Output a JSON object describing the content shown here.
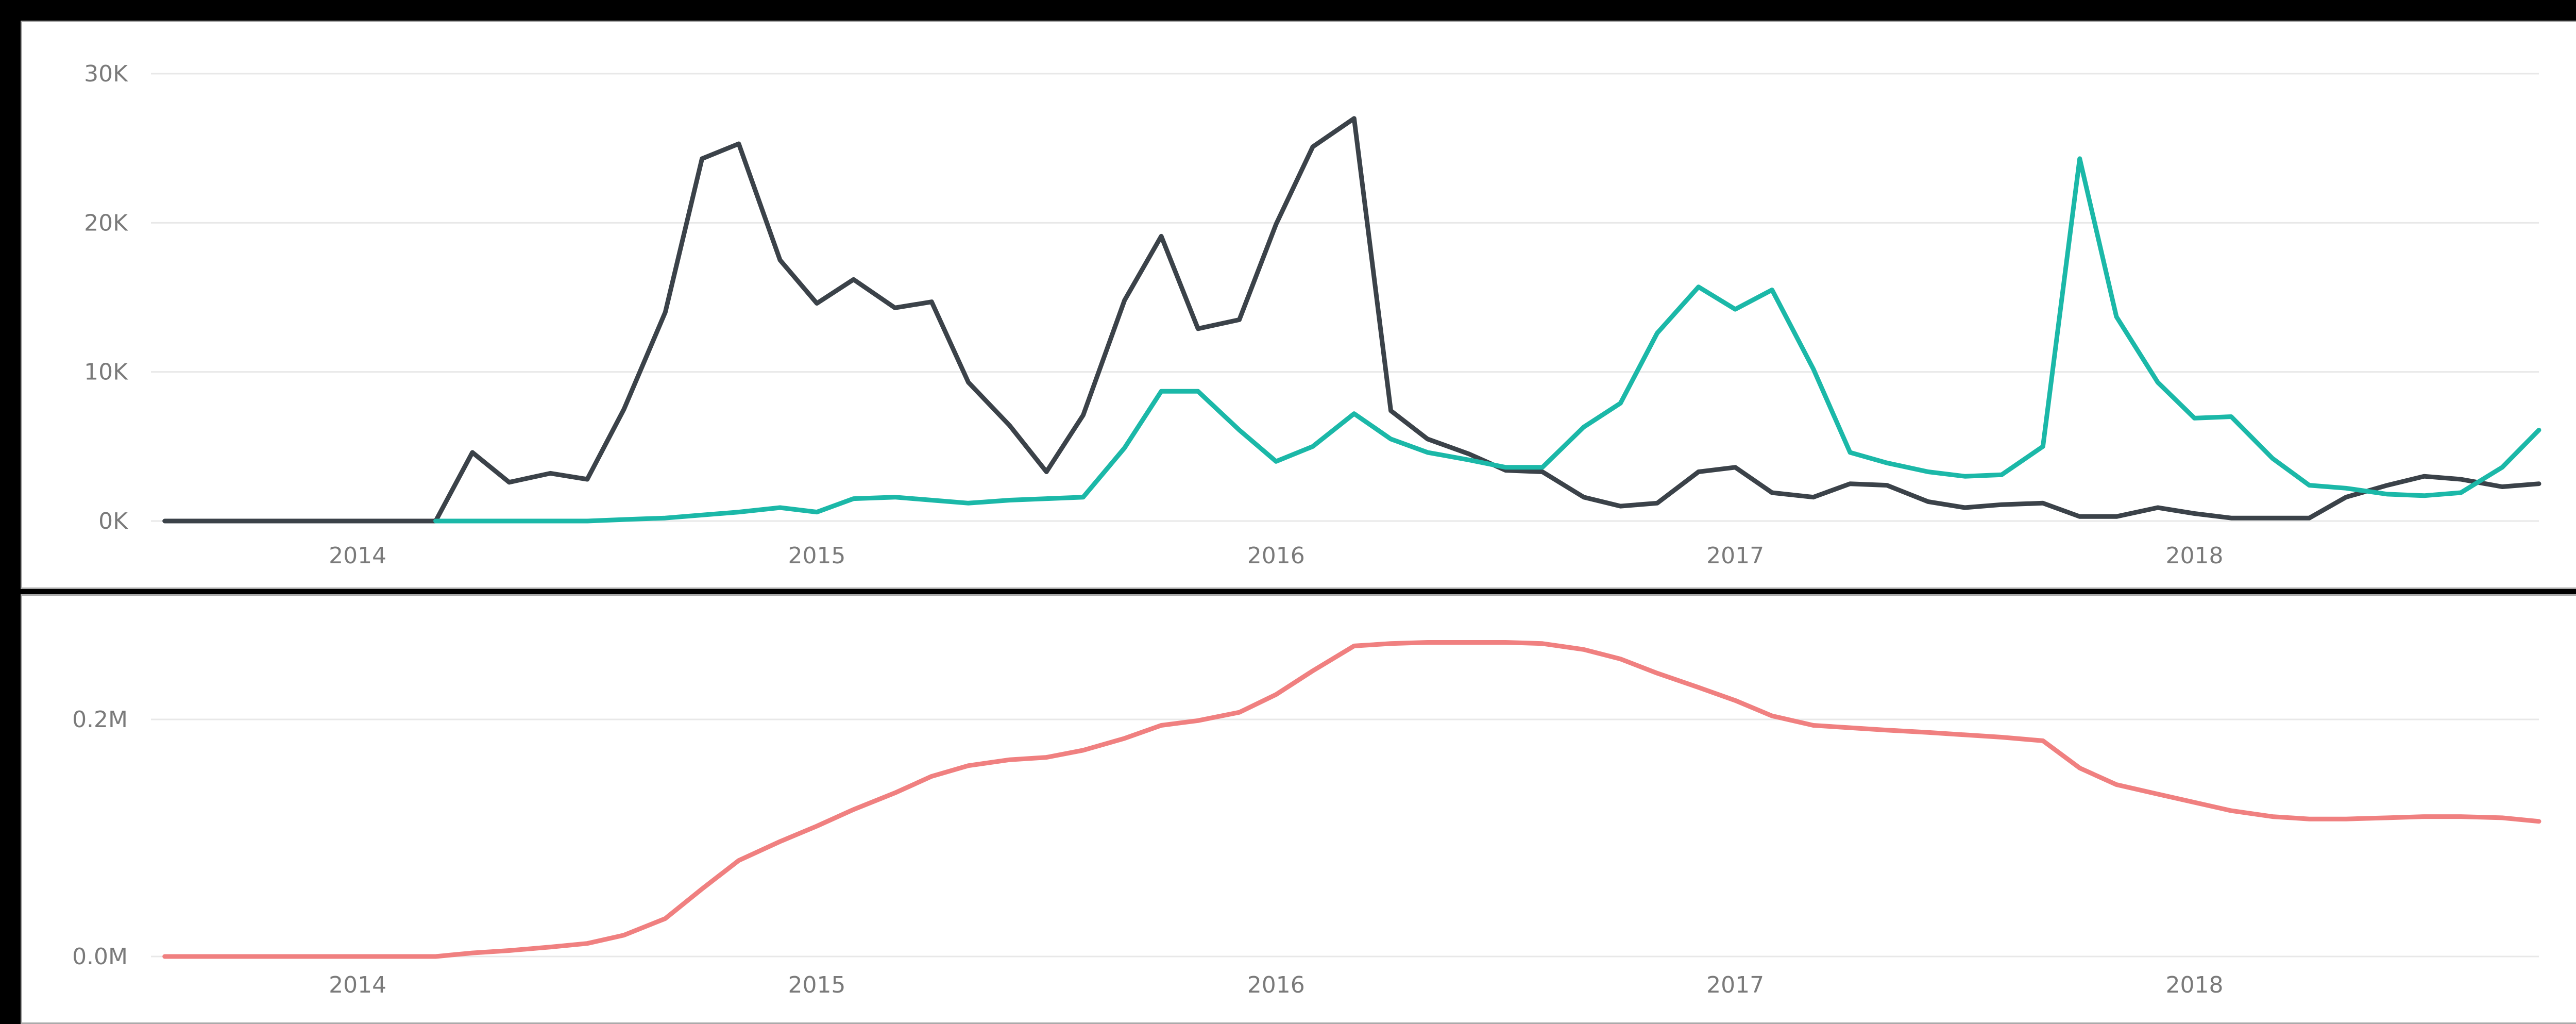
{
  "colors": {
    "black_series": "#3b4249",
    "teal_series": "#1bb8a8",
    "red_series": "#f08080",
    "grid": "#e8e8e8",
    "tick_text": "#7a7a7a"
  },
  "chart_data": [
    {
      "type": "line",
      "title": "",
      "xlabel": "",
      "ylabel": "",
      "x_tick_labels": [
        "2014",
        "2015",
        "2016",
        "2017",
        "2018"
      ],
      "y_tick_labels": [
        "0K",
        "10K",
        "20K",
        "30K"
      ],
      "y_ticks": [
        0,
        10000,
        20000,
        30000
      ],
      "ylim": [
        0,
        30000
      ],
      "xlim": [
        2013.55,
        2018.75
      ],
      "grid": true,
      "legend": "none",
      "series": [
        {
          "color": "#3b4249",
          "points": [
            [
              2013.58,
              0
            ],
            [
              2014.17,
              0
            ],
            [
              2014.25,
              4600
            ],
            [
              2014.33,
              2600
            ],
            [
              2014.42,
              3200
            ],
            [
              2014.5,
              2800
            ],
            [
              2014.58,
              7500
            ],
            [
              2014.67,
              14000
            ],
            [
              2014.75,
              24300
            ],
            [
              2014.83,
              25300
            ],
            [
              2014.92,
              17500
            ],
            [
              2015.0,
              14600
            ],
            [
              2015.08,
              16200
            ],
            [
              2015.17,
              14300
            ],
            [
              2015.25,
              14700
            ],
            [
              2015.33,
              9300
            ],
            [
              2015.42,
              6400
            ],
            [
              2015.5,
              3300
            ],
            [
              2015.58,
              7100
            ],
            [
              2015.67,
              14800
            ],
            [
              2015.75,
              19100
            ],
            [
              2015.83,
              12900
            ],
            [
              2015.92,
              13500
            ],
            [
              2016.0,
              19900
            ],
            [
              2016.08,
              25100
            ],
            [
              2016.17,
              27000
            ],
            [
              2016.25,
              7400
            ],
            [
              2016.33,
              5500
            ],
            [
              2016.42,
              4500
            ],
            [
              2016.5,
              3400
            ],
            [
              2016.58,
              3300
            ],
            [
              2016.67,
              1600
            ],
            [
              2016.75,
              1000
            ],
            [
              2016.83,
              1200
            ],
            [
              2016.92,
              3300
            ],
            [
              2017.0,
              3600
            ],
            [
              2017.08,
              1900
            ],
            [
              2017.17,
              1600
            ],
            [
              2017.25,
              2500
            ],
            [
              2017.33,
              2400
            ],
            [
              2017.42,
              1300
            ],
            [
              2017.5,
              900
            ],
            [
              2017.58,
              1100
            ],
            [
              2017.67,
              1200
            ],
            [
              2017.75,
              300
            ],
            [
              2017.83,
              300
            ],
            [
              2017.92,
              900
            ],
            [
              2018.0,
              500
            ],
            [
              2018.08,
              200
            ],
            [
              2018.17,
              200
            ],
            [
              2018.25,
              200
            ],
            [
              2018.33,
              1600
            ],
            [
              2018.42,
              2400
            ],
            [
              2018.5,
              3000
            ],
            [
              2018.58,
              2800
            ],
            [
              2018.67,
              2300
            ],
            [
              2018.75,
              2500
            ]
          ]
        },
        {
          "color": "#1bb8a8",
          "points": [
            [
              2014.17,
              0
            ],
            [
              2014.5,
              0
            ],
            [
              2014.58,
              100
            ],
            [
              2014.67,
              200
            ],
            [
              2014.75,
              400
            ],
            [
              2014.83,
              600
            ],
            [
              2014.92,
              900
            ],
            [
              2015.0,
              600
            ],
            [
              2015.08,
              1500
            ],
            [
              2015.17,
              1600
            ],
            [
              2015.25,
              1400
            ],
            [
              2015.33,
              1200
            ],
            [
              2015.42,
              1400
            ],
            [
              2015.5,
              1500
            ],
            [
              2015.58,
              1600
            ],
            [
              2015.67,
              4900
            ],
            [
              2015.75,
              8700
            ],
            [
              2015.83,
              8700
            ],
            [
              2015.92,
              6100
            ],
            [
              2016.0,
              4000
            ],
            [
              2016.08,
              5000
            ],
            [
              2016.17,
              7200
            ],
            [
              2016.25,
              5500
            ],
            [
              2016.33,
              4600
            ],
            [
              2016.42,
              4100
            ],
            [
              2016.5,
              3600
            ],
            [
              2016.58,
              3600
            ],
            [
              2016.67,
              6300
            ],
            [
              2016.75,
              7900
            ],
            [
              2016.83,
              12600
            ],
            [
              2016.92,
              15700
            ],
            [
              2017.0,
              14200
            ],
            [
              2017.08,
              15500
            ],
            [
              2017.17,
              10200
            ],
            [
              2017.25,
              4600
            ],
            [
              2017.33,
              3900
            ],
            [
              2017.42,
              3300
            ],
            [
              2017.5,
              3000
            ],
            [
              2017.58,
              3100
            ],
            [
              2017.67,
              5000
            ],
            [
              2017.75,
              24300
            ],
            [
              2017.83,
              13700
            ],
            [
              2017.92,
              9300
            ],
            [
              2018.0,
              6900
            ],
            [
              2018.08,
              7000
            ],
            [
              2018.17,
              4200
            ],
            [
              2018.25,
              2400
            ],
            [
              2018.33,
              2200
            ],
            [
              2018.42,
              1800
            ],
            [
              2018.5,
              1700
            ],
            [
              2018.58,
              1900
            ],
            [
              2018.67,
              3600
            ],
            [
              2018.75,
              6100
            ]
          ]
        }
      ]
    },
    {
      "type": "line",
      "title": "",
      "xlabel": "",
      "ylabel": "",
      "x_tick_labels": [
        "2014",
        "2015",
        "2016",
        "2017",
        "2018"
      ],
      "y_tick_labels": [
        "0.0M",
        "0.2M"
      ],
      "y_ticks": [
        0,
        200000
      ],
      "ylim": [
        0,
        300000
      ],
      "xlim": [
        2013.55,
        2018.75
      ],
      "grid": true,
      "legend": "none",
      "series": [
        {
          "color": "#f08080",
          "points": [
            [
              2013.58,
              0
            ],
            [
              2014.17,
              0
            ],
            [
              2014.25,
              3000
            ],
            [
              2014.33,
              5000
            ],
            [
              2014.42,
              8000
            ],
            [
              2014.5,
              11000
            ],
            [
              2014.58,
              18000
            ],
            [
              2014.67,
              32000
            ],
            [
              2014.75,
              57000
            ],
            [
              2014.83,
              81000
            ],
            [
              2014.92,
              97000
            ],
            [
              2015.0,
              110000
            ],
            [
              2015.08,
              124000
            ],
            [
              2015.17,
              138000
            ],
            [
              2015.25,
              152000
            ],
            [
              2015.33,
              161000
            ],
            [
              2015.42,
              166000
            ],
            [
              2015.5,
              168000
            ],
            [
              2015.58,
              174000
            ],
            [
              2015.67,
              184000
            ],
            [
              2015.75,
              195000
            ],
            [
              2015.83,
              199000
            ],
            [
              2015.92,
              206000
            ],
            [
              2016.0,
              221000
            ],
            [
              2016.08,
              241000
            ],
            [
              2016.17,
              262000
            ],
            [
              2016.25,
              264000
            ],
            [
              2016.33,
              265000
            ],
            [
              2016.42,
              265000
            ],
            [
              2016.5,
              265000
            ],
            [
              2016.58,
              264000
            ],
            [
              2016.67,
              259000
            ],
            [
              2016.75,
              251000
            ],
            [
              2016.83,
              239000
            ],
            [
              2016.92,
              227000
            ],
            [
              2017.0,
              216000
            ],
            [
              2017.08,
              203000
            ],
            [
              2017.17,
              195000
            ],
            [
              2017.25,
              193000
            ],
            [
              2017.33,
              191000
            ],
            [
              2017.42,
              189000
            ],
            [
              2017.5,
              187000
            ],
            [
              2017.58,
              185000
            ],
            [
              2017.67,
              182000
            ],
            [
              2017.75,
              159000
            ],
            [
              2017.83,
              145000
            ],
            [
              2017.92,
              137000
            ],
            [
              2018.0,
              130000
            ],
            [
              2018.08,
              123000
            ],
            [
              2018.17,
              118000
            ],
            [
              2018.25,
              116000
            ],
            [
              2018.33,
              116000
            ],
            [
              2018.42,
              117000
            ],
            [
              2018.5,
              118000
            ],
            [
              2018.58,
              118000
            ],
            [
              2018.67,
              117000
            ],
            [
              2018.75,
              114000
            ]
          ]
        }
      ]
    }
  ]
}
